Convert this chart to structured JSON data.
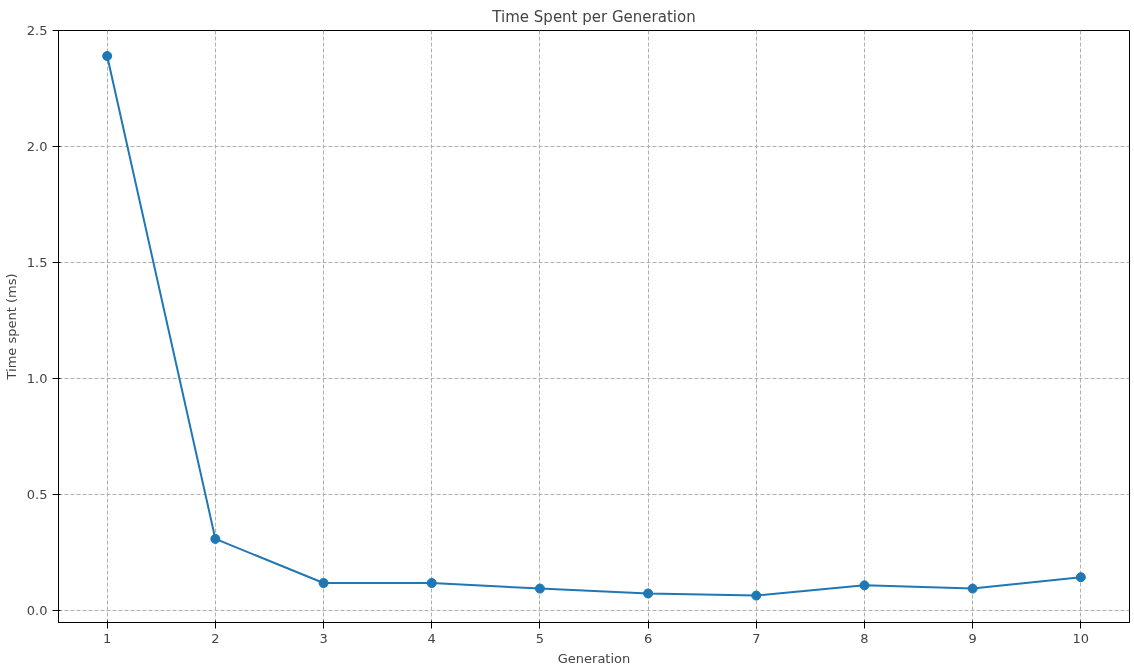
{
  "chart_data": {
    "type": "line",
    "title": "Time Spent per Generation",
    "xlabel": "Generation",
    "ylabel": "Time spent (ms)",
    "x": [
      1,
      2,
      3,
      4,
      5,
      6,
      7,
      8,
      9,
      10
    ],
    "series": [
      {
        "color": "#1f77b4",
        "values": [
          2.39,
          0.31,
          0.12,
          0.12,
          0.096,
          0.075,
          0.066,
          0.11,
          0.096,
          0.145
        ]
      }
    ],
    "xlim": [
      0.55,
      10.45
    ],
    "ylim": [
      -0.05,
      2.5
    ],
    "xticks": [
      1,
      2,
      3,
      4,
      5,
      6,
      7,
      8,
      9,
      10
    ],
    "yticks": [
      {
        "value": 0,
        "label": "0.0"
      },
      {
        "value": 0.5,
        "label": "0.5"
      },
      {
        "value": 1,
        "label": "1.0"
      },
      {
        "value": 1.5,
        "label": "1.5"
      },
      {
        "value": 2,
        "label": "2.0"
      },
      {
        "value": 2.5,
        "label": "2.5"
      }
    ],
    "grid": true,
    "marker": "circle",
    "line_style": "solid"
  }
}
